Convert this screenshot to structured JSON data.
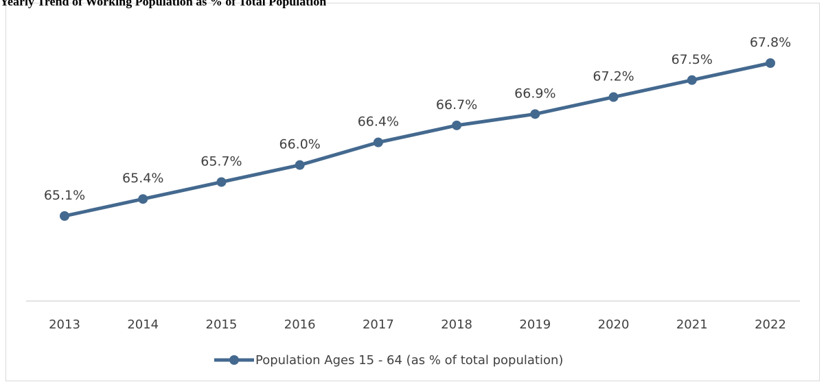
{
  "chart_data": {
    "type": "line",
    "title": "Yearly Trend of Working Population as % of Total Population",
    "x": [
      "2013",
      "2014",
      "2015",
      "2016",
      "2017",
      "2018",
      "2019",
      "2020",
      "2021",
      "2022"
    ],
    "series": [
      {
        "name": "Population Ages 15 - 64 (as % of total population)",
        "values": [
          65.1,
          65.4,
          65.7,
          66.0,
          66.4,
          66.7,
          66.9,
          67.2,
          67.5,
          67.8
        ],
        "labels": [
          "65.1%",
          "65.4%",
          "65.7%",
          "66.0%",
          "66.4%",
          "66.7%",
          "66.9%",
          "67.2%",
          "67.5%",
          "67.8%"
        ]
      }
    ],
    "xlabel": "",
    "ylabel": "",
    "y_axis_visible": false,
    "grid": false,
    "legend_position": "bottom",
    "colors": {
      "series": "#44698f",
      "axis": "#d9d9d9",
      "text": "#404040"
    }
  }
}
